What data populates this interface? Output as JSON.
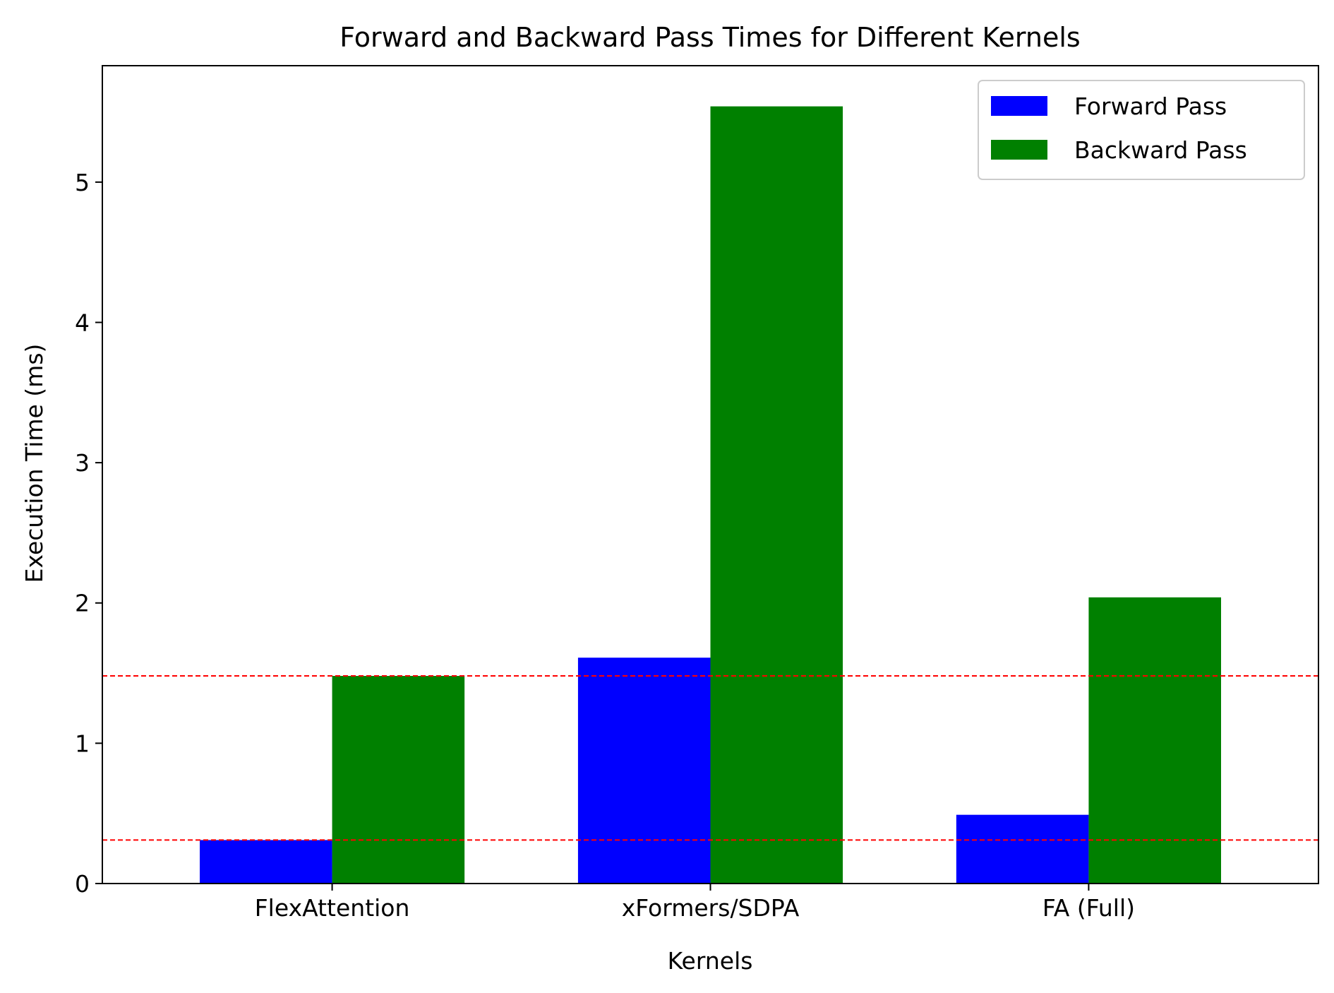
{
  "chart_data": {
    "type": "bar",
    "title": "Forward and Backward Pass Times for Different Kernels",
    "xlabel": "Kernels",
    "ylabel": "Execution Time (ms)",
    "categories": [
      "FlexAttention",
      "xFormers/SDPA",
      "FA (Full)"
    ],
    "series": [
      {
        "name": "Forward Pass",
        "color": "#0000ff",
        "values": [
          0.31,
          1.61,
          0.49
        ]
      },
      {
        "name": "Backward Pass",
        "color": "#008000",
        "values": [
          1.48,
          5.54,
          2.04
        ]
      }
    ],
    "ylim": [
      0,
      5.83
    ],
    "yticks": [
      0,
      1,
      2,
      3,
      4,
      5
    ],
    "reference_lines": [
      {
        "y": 1.48,
        "color": "#ff0000",
        "style": "dashed"
      },
      {
        "y": 0.31,
        "color": "#ff0000",
        "style": "dashed"
      }
    ],
    "legend": {
      "position": "top-right"
    },
    "grid": false
  }
}
